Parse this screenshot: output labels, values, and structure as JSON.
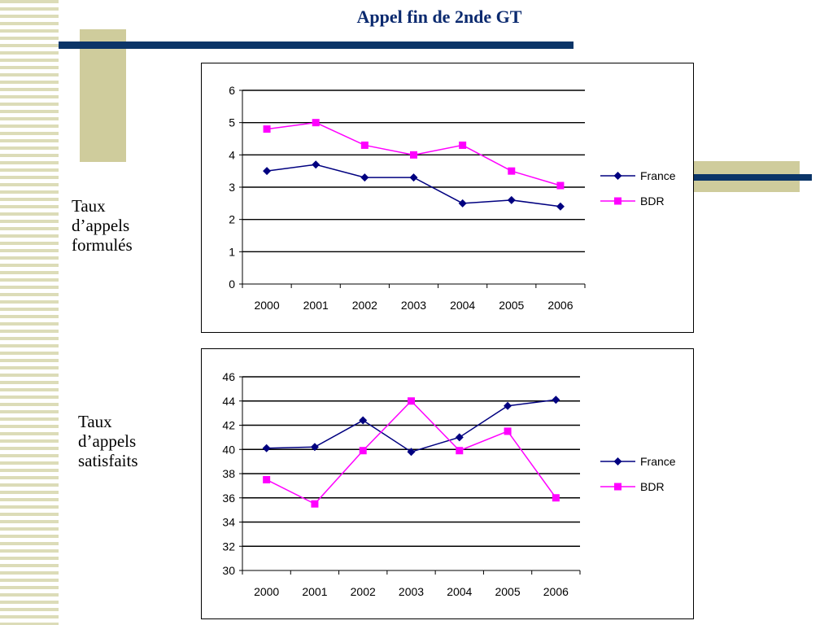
{
  "slide": {
    "title": "Appel fin de 2nde GT",
    "label_top": "Taux\nd’appels\nformulés",
    "label_bottom": "Taux\nd’appels\nsatisfaits"
  },
  "colors": {
    "title": "#0b2a6f",
    "deco_bar": "#0b3568",
    "deco_block": "#cfcc9c",
    "france": "#000080",
    "bdr": "#ff00ff"
  },
  "chart_data": [
    {
      "type": "line",
      "categories": [
        "2000",
        "2001",
        "2002",
        "2003",
        "2004",
        "2005",
        "2006"
      ],
      "series": [
        {
          "name": "France",
          "values": [
            3.5,
            3.7,
            3.3,
            3.3,
            2.5,
            2.6,
            2.4
          ],
          "marker": "diamond",
          "color": "#000080"
        },
        {
          "name": "BDR",
          "values": [
            4.8,
            5.0,
            4.3,
            4.0,
            4.3,
            3.5,
            3.05
          ],
          "marker": "square",
          "color": "#ff00ff"
        }
      ],
      "ylim": [
        0,
        6
      ],
      "yticks": [
        0,
        1,
        2,
        3,
        4,
        5,
        6
      ],
      "grid": true,
      "legend": "right"
    },
    {
      "type": "line",
      "categories": [
        "2000",
        "2001",
        "2002",
        "2003",
        "2004",
        "2005",
        "2006"
      ],
      "series": [
        {
          "name": "France",
          "values": [
            40.1,
            40.2,
            42.4,
            39.8,
            41.0,
            43.6,
            44.1
          ],
          "marker": "diamond",
          "color": "#000080"
        },
        {
          "name": "BDR",
          "values": [
            37.5,
            35.5,
            39.9,
            44.0,
            39.9,
            41.5,
            36.0
          ],
          "marker": "square",
          "color": "#ff00ff"
        }
      ],
      "ylim": [
        30,
        46
      ],
      "yticks": [
        30,
        32,
        34,
        36,
        38,
        40,
        42,
        44,
        46
      ],
      "grid": true,
      "legend": "right"
    }
  ]
}
